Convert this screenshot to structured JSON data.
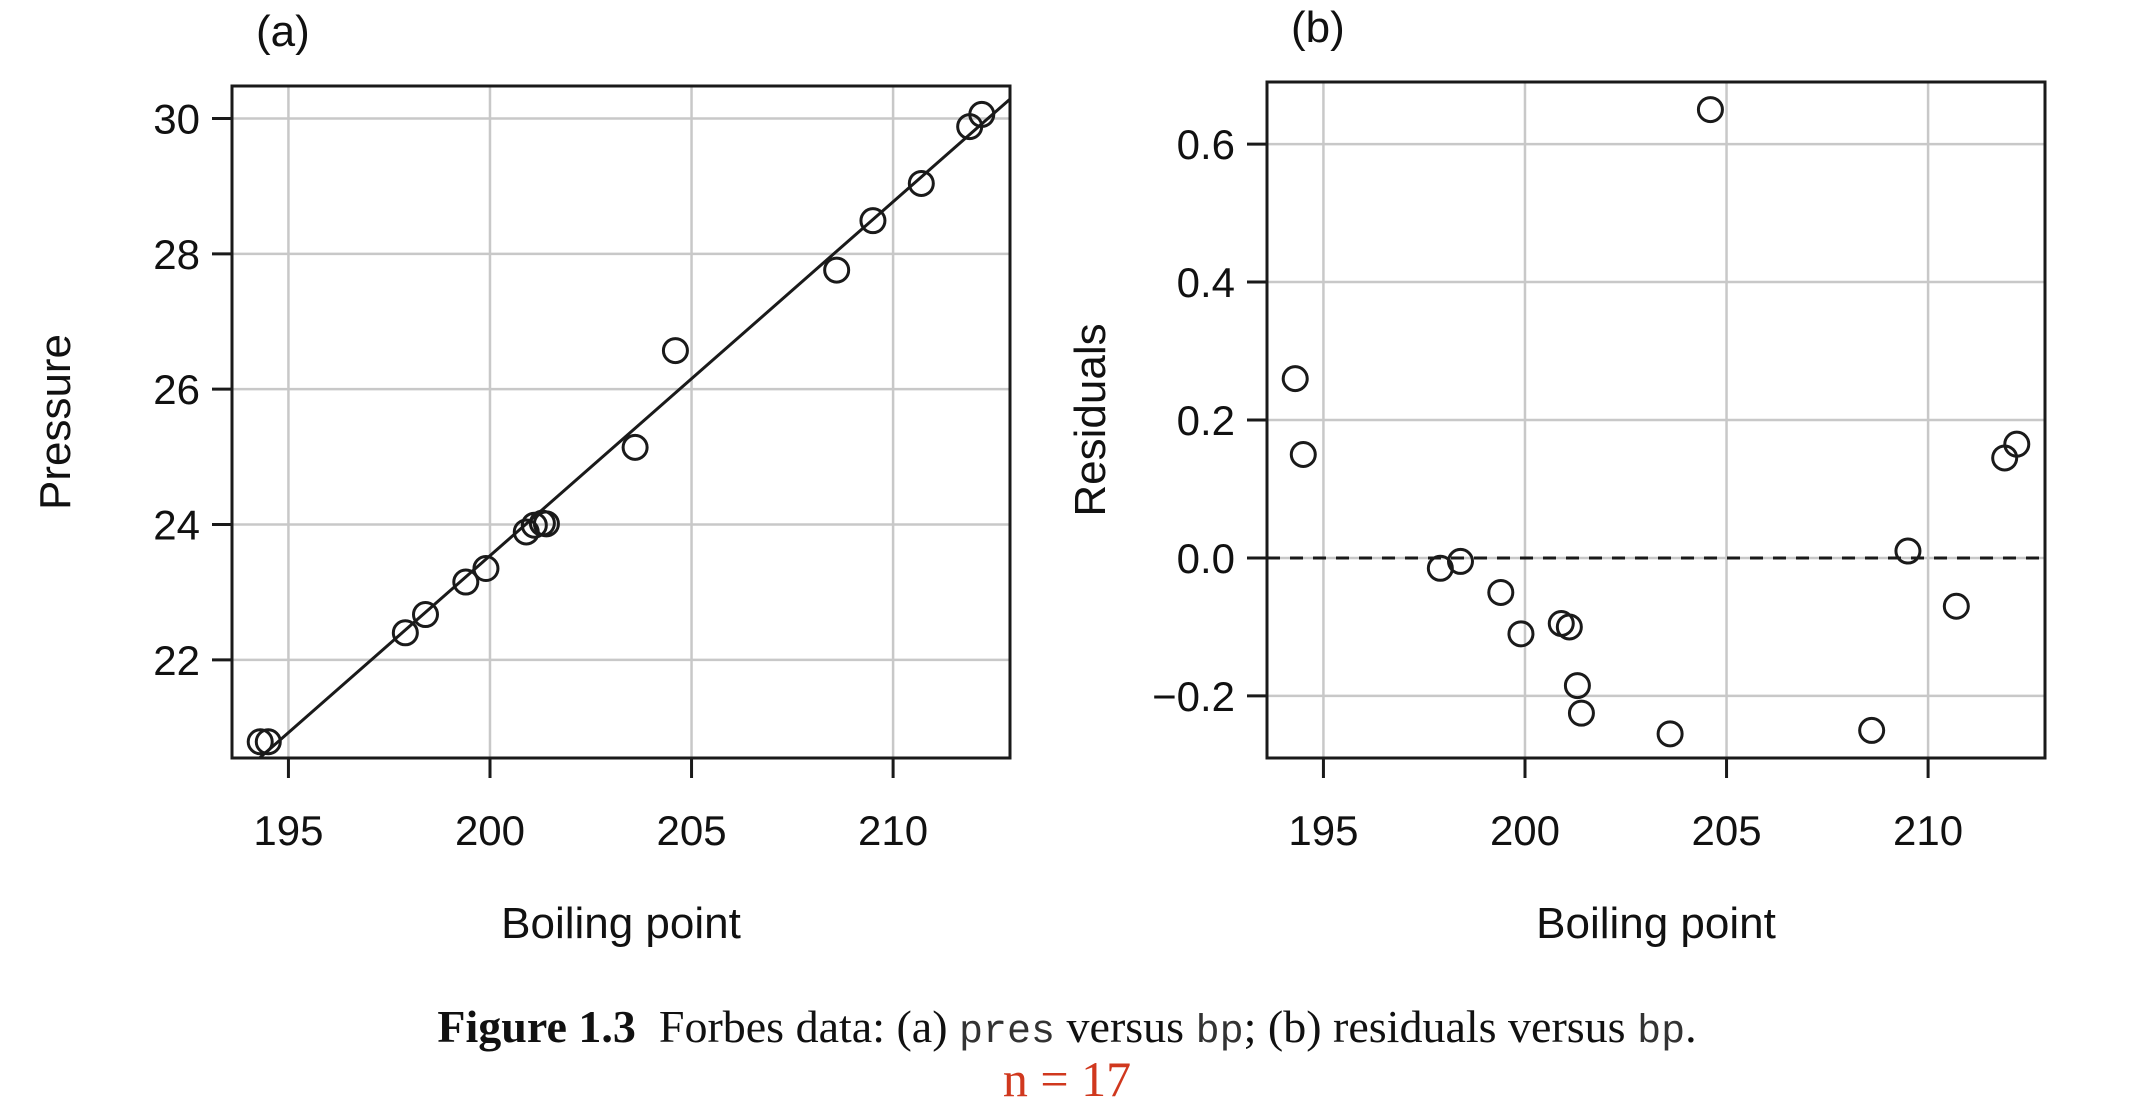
{
  "chart_data": [
    {
      "type": "scatter",
      "panel_label": "(a)",
      "xlabel": "Boiling point",
      "ylabel": "Pressure",
      "xlim": [
        193.6,
        212.9
      ],
      "ylim": [
        20.55,
        30.48
      ],
      "xticks": [
        195,
        200,
        205,
        210
      ],
      "yticks": [
        22,
        24,
        26,
        28,
        30
      ],
      "grid": true,
      "points": [
        {
          "x": 194.3,
          "y": 20.79
        },
        {
          "x": 194.5,
          "y": 20.79
        },
        {
          "x": 197.9,
          "y": 22.4
        },
        {
          "x": 198.4,
          "y": 22.67
        },
        {
          "x": 199.4,
          "y": 23.15
        },
        {
          "x": 199.9,
          "y": 23.35
        },
        {
          "x": 200.9,
          "y": 23.89
        },
        {
          "x": 201.1,
          "y": 23.99
        },
        {
          "x": 201.3,
          "y": 24.02
        },
        {
          "x": 201.4,
          "y": 24.01
        },
        {
          "x": 203.6,
          "y": 25.14
        },
        {
          "x": 204.6,
          "y": 26.57
        },
        {
          "x": 208.6,
          "y": 27.76
        },
        {
          "x": 209.5,
          "y": 28.49
        },
        {
          "x": 210.7,
          "y": 29.04
        },
        {
          "x": 211.9,
          "y": 29.88
        },
        {
          "x": 212.2,
          "y": 30.06
        }
      ],
      "fit_line": {
        "intercept": -81.06,
        "slope": 0.523
      }
    },
    {
      "type": "scatter",
      "panel_label": "(b)",
      "xlabel": "Boiling point",
      "ylabel": "Residuals",
      "xlim": [
        193.6,
        212.9
      ],
      "ylim": [
        -0.29,
        0.69
      ],
      "xticks": [
        195,
        200,
        205,
        210
      ],
      "yticks": [
        -0.2,
        0.0,
        0.2,
        0.4,
        0.6
      ],
      "ytick_labels": [
        "−0.2",
        "0.0",
        "0.2",
        "0.4",
        "0.6"
      ],
      "grid": true,
      "reference_line": {
        "y": 0,
        "style": "dashed"
      },
      "points": [
        {
          "x": 194.3,
          "y": 0.26
        },
        {
          "x": 194.5,
          "y": 0.15
        },
        {
          "x": 197.9,
          "y": -0.015
        },
        {
          "x": 198.4,
          "y": -0.005
        },
        {
          "x": 199.4,
          "y": -0.05
        },
        {
          "x": 199.9,
          "y": -0.11
        },
        {
          "x": 200.9,
          "y": -0.095
        },
        {
          "x": 201.1,
          "y": -0.1
        },
        {
          "x": 201.3,
          "y": -0.185
        },
        {
          "x": 201.4,
          "y": -0.225
        },
        {
          "x": 203.6,
          "y": -0.255
        },
        {
          "x": 204.6,
          "y": 0.65
        },
        {
          "x": 208.6,
          "y": -0.25
        },
        {
          "x": 209.5,
          "y": 0.01
        },
        {
          "x": 210.7,
          "y": -0.07
        },
        {
          "x": 211.9,
          "y": 0.145
        },
        {
          "x": 212.2,
          "y": 0.165
        }
      ]
    }
  ],
  "caption": {
    "figure_label": "Figure 1.3",
    "part1": "Forbes data: (a)",
    "var1": "pres",
    "part2": "versus",
    "var2": "bp",
    "part3": "; (b) residuals versus",
    "var3": "bp",
    "part4": "."
  },
  "note": "n = 17",
  "colors": {
    "axis": "#1a1a1a",
    "grid": "#c8c8c8",
    "point": "#1a1a1a",
    "note": "#d0381e"
  }
}
